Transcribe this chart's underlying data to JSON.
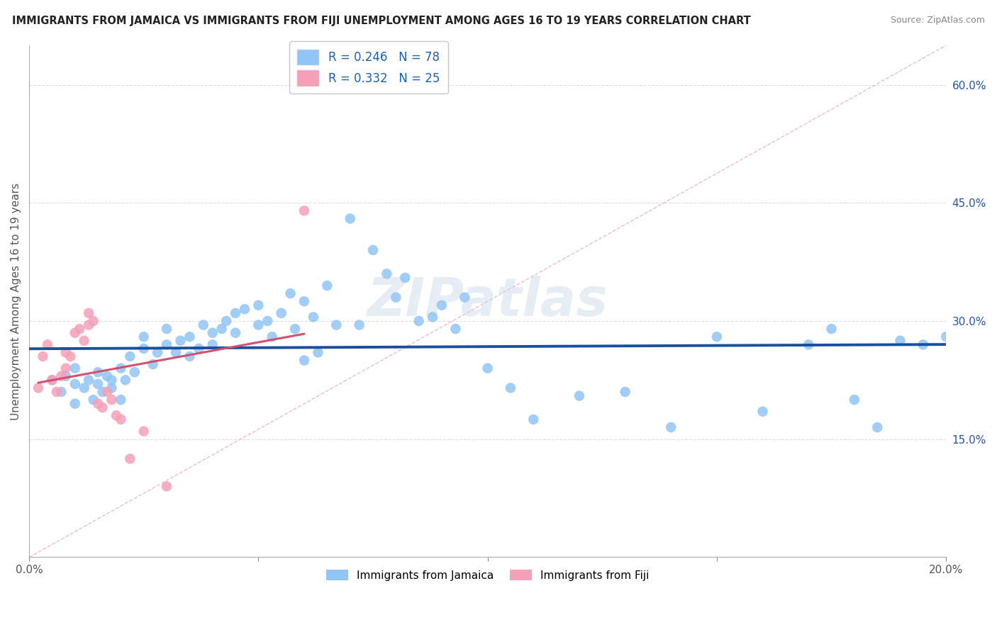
{
  "title": "IMMIGRANTS FROM JAMAICA VS IMMIGRANTS FROM FIJI UNEMPLOYMENT AMONG AGES 16 TO 19 YEARS CORRELATION CHART",
  "source": "Source: ZipAtlas.com",
  "ylabel": "Unemployment Among Ages 16 to 19 years",
  "xlim": [
    0.0,
    0.2
  ],
  "ylim": [
    0.0,
    0.65
  ],
  "xticks": [
    0.0,
    0.05,
    0.1,
    0.15,
    0.2
  ],
  "xticklabels": [
    "0.0%",
    "",
    "",
    "",
    "20.0%"
  ],
  "yticks_right": [
    0.15,
    0.3,
    0.45,
    0.6
  ],
  "ytick_labels_right": [
    "15.0%",
    "30.0%",
    "45.0%",
    "60.0%"
  ],
  "jamaica_color": "#92c5f5",
  "fiji_color": "#f5a0b8",
  "jamaica_line_color": "#1a4fa0",
  "fiji_line_color": "#d45070",
  "diag_line_color": "#e8a0b0",
  "jamaica_R": 0.246,
  "jamaica_N": 78,
  "fiji_R": 0.332,
  "fiji_N": 25,
  "jamaica_x": [
    0.005,
    0.007,
    0.008,
    0.01,
    0.01,
    0.01,
    0.012,
    0.013,
    0.014,
    0.015,
    0.015,
    0.016,
    0.017,
    0.018,
    0.018,
    0.02,
    0.02,
    0.021,
    0.022,
    0.023,
    0.025,
    0.025,
    0.027,
    0.028,
    0.03,
    0.03,
    0.032,
    0.033,
    0.035,
    0.035,
    0.037,
    0.038,
    0.04,
    0.04,
    0.042,
    0.043,
    0.045,
    0.045,
    0.047,
    0.05,
    0.05,
    0.052,
    0.053,
    0.055,
    0.057,
    0.058,
    0.06,
    0.06,
    0.062,
    0.063,
    0.065,
    0.067,
    0.07,
    0.072,
    0.075,
    0.078,
    0.08,
    0.082,
    0.085,
    0.088,
    0.09,
    0.093,
    0.095,
    0.1,
    0.105,
    0.11,
    0.12,
    0.13,
    0.14,
    0.15,
    0.16,
    0.17,
    0.175,
    0.18,
    0.185,
    0.19,
    0.195,
    0.2
  ],
  "jamaica_y": [
    0.225,
    0.21,
    0.23,
    0.195,
    0.22,
    0.24,
    0.215,
    0.225,
    0.2,
    0.22,
    0.235,
    0.21,
    0.23,
    0.215,
    0.225,
    0.2,
    0.24,
    0.225,
    0.255,
    0.235,
    0.265,
    0.28,
    0.245,
    0.26,
    0.27,
    0.29,
    0.26,
    0.275,
    0.255,
    0.28,
    0.265,
    0.295,
    0.285,
    0.27,
    0.29,
    0.3,
    0.31,
    0.285,
    0.315,
    0.295,
    0.32,
    0.3,
    0.28,
    0.31,
    0.335,
    0.29,
    0.25,
    0.325,
    0.305,
    0.26,
    0.345,
    0.295,
    0.43,
    0.295,
    0.39,
    0.36,
    0.33,
    0.355,
    0.3,
    0.305,
    0.32,
    0.29,
    0.33,
    0.24,
    0.215,
    0.175,
    0.205,
    0.21,
    0.165,
    0.28,
    0.185,
    0.27,
    0.29,
    0.2,
    0.165,
    0.275,
    0.27,
    0.28
  ],
  "fiji_x": [
    0.002,
    0.003,
    0.004,
    0.005,
    0.006,
    0.007,
    0.008,
    0.008,
    0.009,
    0.01,
    0.011,
    0.012,
    0.013,
    0.013,
    0.014,
    0.015,
    0.016,
    0.017,
    0.018,
    0.019,
    0.02,
    0.022,
    0.025,
    0.03,
    0.06
  ],
  "fiji_y": [
    0.215,
    0.255,
    0.27,
    0.225,
    0.21,
    0.23,
    0.26,
    0.24,
    0.255,
    0.285,
    0.29,
    0.275,
    0.295,
    0.31,
    0.3,
    0.195,
    0.19,
    0.21,
    0.2,
    0.18,
    0.175,
    0.125,
    0.16,
    0.09,
    0.44
  ],
  "background_color": "#ffffff",
  "grid_color": "#dddddd",
  "watermark": "ZIPatlas"
}
